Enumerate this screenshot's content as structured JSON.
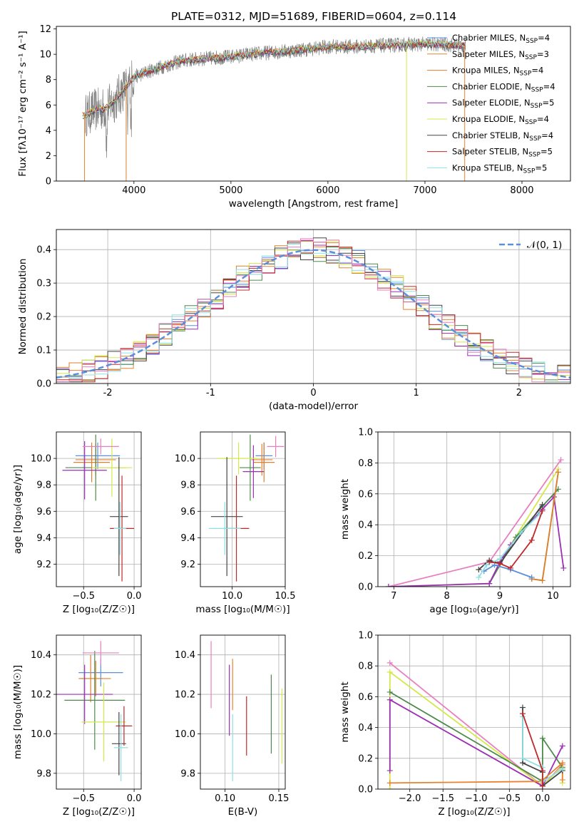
{
  "colors": {
    "chab_miles": "#5b8fd9",
    "salp_miles": "#e8822f",
    "krou_miles": "#d8812f",
    "chab_elodie": "#4c8a4c",
    "salp_elodie": "#9b2fb6",
    "krou_elodie": "#d4e84a",
    "chab_stelib": "#444444",
    "salp_stelib": "#c0282a",
    "krou_stelib": "#8fe0e2",
    "pink": "#e87fbf",
    "observed": "#808080",
    "grid": "#b0b0b0",
    "gauss": "#5b8fd9"
  },
  "chart_data": [
    {
      "type": "line",
      "title": "PLATE=0312, MJD=51689, FIBERID=0604, z=0.114",
      "xlabel": "wavelength [Angstrom, rest frame]",
      "ylabel": "Flux [fλ10⁻¹⁷ erg cm⁻² s⁻¹ A⁻¹]",
      "xlim": [
        3200,
        8500
      ],
      "ylim": [
        0,
        12.2
      ],
      "xticks": [
        4000,
        5000,
        6000,
        7000,
        8000
      ],
      "yticks": [
        0,
        2,
        4,
        6,
        8,
        10,
        12
      ],
      "grid": false,
      "legend_position": "right",
      "series": [
        {
          "name": "Chabrier MILES, N",
          "sub": "SSP",
          "suffix": "=4",
          "color_key": "chab_miles"
        },
        {
          "name": "Salpeter MILES, N",
          "sub": "SSP",
          "suffix": "=3",
          "color_key": "salp_miles"
        },
        {
          "name": "Kroupa MILES, N",
          "sub": "SSP",
          "suffix": "=4",
          "color_key": "krou_miles"
        },
        {
          "name": "Chabrier ELODIE, N",
          "sub": "SSP",
          "suffix": "=4",
          "color_key": "chab_elodie"
        },
        {
          "name": "Salpeter ELODIE, N",
          "sub": "SSP",
          "suffix": "=5",
          "color_key": "salp_elodie"
        },
        {
          "name": "Kroupa ELODIE, N",
          "sub": "SSP",
          "suffix": "=4",
          "color_key": "krou_elodie"
        },
        {
          "name": "Chabrier STELIB, N",
          "sub": "SSP",
          "suffix": "=4",
          "color_key": "chab_stelib"
        },
        {
          "name": "Salpeter STELIB, N",
          "sub": "SSP",
          "suffix": "=5",
          "color_key": "salp_stelib"
        },
        {
          "name": "Kroupa STELIB, N",
          "sub": "SSP",
          "suffix": "=5",
          "color_key": "krou_stelib"
        }
      ],
      "continuum": [
        [
          3500,
          5.2
        ],
        [
          3600,
          5.6
        ],
        [
          3700,
          5.7
        ],
        [
          3800,
          6.3
        ],
        [
          3900,
          7.3
        ],
        [
          4000,
          8.2
        ],
        [
          4200,
          8.8
        ],
        [
          4500,
          9.5
        ],
        [
          4800,
          9.7
        ],
        [
          5000,
          9.8
        ],
        [
          5200,
          10.0
        ],
        [
          5500,
          10.2
        ],
        [
          5800,
          10.4
        ],
        [
          6000,
          10.6
        ],
        [
          6300,
          10.6
        ],
        [
          6600,
          10.7
        ],
        [
          7000,
          10.8
        ],
        [
          7400,
          10.7
        ]
      ]
    },
    {
      "type": "area",
      "xlabel": "(data-model)/error",
      "ylabel": "Normed distribution",
      "xlim": [
        -2.5,
        2.5
      ],
      "ylim": [
        0,
        0.46
      ],
      "xticks": [
        -2,
        -1,
        0,
        1,
        2
      ],
      "yticks": [
        0.0,
        0.1,
        0.2,
        0.3,
        0.4
      ],
      "grid": true,
      "legend": "𝒩(0, 1)",
      "legend_position": "top-right"
    },
    {
      "type": "scatter",
      "xlabel": "Z [log₁₀(Z/Z☉)]",
      "ylabel": "age  [log₁₀(age/yr)]",
      "xlim": [
        -0.77,
        0.07
      ],
      "ylim": [
        9.03,
        10.2
      ],
      "xticks": [
        -0.5,
        0.0
      ],
      "yticks": [
        9.2,
        9.4,
        9.6,
        9.8,
        10.0
      ],
      "grid": true,
      "points": [
        {
          "x": -0.36,
          "y": 10.02,
          "xerr": 0.22,
          "yerr": 0.1,
          "color_key": "chab_miles"
        },
        {
          "x": -0.38,
          "y": 9.99,
          "xerr": 0.2,
          "yerr": 0.12,
          "color_key": "salp_miles"
        },
        {
          "x": -0.42,
          "y": 9.97,
          "xerr": 0.18,
          "yerr": 0.15,
          "color_key": "krou_miles"
        },
        {
          "x": -0.38,
          "y": 9.93,
          "xerr": 0.3,
          "yerr": 0.25,
          "color_key": "chab_elodie"
        },
        {
          "x": -0.49,
          "y": 9.91,
          "xerr": 0.22,
          "yerr": 0.22,
          "color_key": "salp_elodie"
        },
        {
          "x": -0.22,
          "y": 9.93,
          "xerr": 0.2,
          "yerr": 0.22,
          "color_key": "krou_elodie"
        },
        {
          "x": -0.15,
          "y": 9.56,
          "xerr": 0.09,
          "yerr": 0.45,
          "color_key": "chab_stelib"
        },
        {
          "x": -0.12,
          "y": 9.47,
          "xerr": 0.12,
          "yerr": 0.4,
          "color_key": "salp_stelib"
        },
        {
          "x": -0.14,
          "y": 9.47,
          "xerr": 0.06,
          "yerr": 0.2,
          "color_key": "krou_stelib"
        },
        {
          "x": -0.33,
          "y": 10.09,
          "xerr": 0.18,
          "yerr": 0.06,
          "color_key": "pink"
        }
      ]
    },
    {
      "type": "scatter",
      "xlabel": "mass [log₁₀(M/M☉)]",
      "ylabel": "",
      "xlim": [
        9.7,
        10.5
      ],
      "ylim": [
        9.03,
        10.2
      ],
      "xticks": [
        10.0,
        10.5
      ],
      "yticks": [
        9.2,
        9.4,
        9.6,
        9.8,
        10.0
      ],
      "grid": true,
      "points": [
        {
          "x": 10.3,
          "y": 10.02,
          "xerr": 0.08,
          "yerr": 0.1,
          "color_key": "chab_miles"
        },
        {
          "x": 10.28,
          "y": 9.99,
          "xerr": 0.1,
          "yerr": 0.12,
          "color_key": "salp_miles"
        },
        {
          "x": 10.3,
          "y": 9.97,
          "xerr": 0.1,
          "yerr": 0.15,
          "color_key": "krou_miles"
        },
        {
          "x": 10.17,
          "y": 9.93,
          "xerr": 0.1,
          "yerr": 0.25,
          "color_key": "chab_elodie"
        },
        {
          "x": 10.2,
          "y": 9.9,
          "xerr": 0.1,
          "yerr": 0.2,
          "color_key": "salp_elodie"
        },
        {
          "x": 10.06,
          "y": 10.0,
          "xerr": 0.2,
          "yerr": 0.12,
          "color_key": "krou_elodie"
        },
        {
          "x": 9.95,
          "y": 9.56,
          "xerr": 0.15,
          "yerr": 0.45,
          "color_key": "chab_stelib"
        },
        {
          "x": 10.04,
          "y": 9.47,
          "xerr": 0.12,
          "yerr": 0.4,
          "color_key": "salp_stelib"
        },
        {
          "x": 9.93,
          "y": 9.47,
          "xerr": 0.15,
          "yerr": 0.2,
          "color_key": "krou_stelib"
        },
        {
          "x": 10.41,
          "y": 10.09,
          "xerr": 0.08,
          "yerr": 0.08,
          "color_key": "pink"
        }
      ]
    },
    {
      "type": "line",
      "xlabel": "age  [log₁₀(age/yr)]",
      "ylabel": "mass weight",
      "xlim": [
        6.7,
        10.33
      ],
      "ylim": [
        0,
        1.0
      ],
      "xticks": [
        7,
        8,
        9,
        10
      ],
      "yticks": [
        0.0,
        0.2,
        0.4,
        0.6,
        0.8,
        1.0
      ],
      "grid": true,
      "series": [
        {
          "color_key": "pink",
          "x": [
            6.9,
            8.8,
            10.15
          ],
          "y": [
            0.0,
            0.16,
            0.82
          ]
        },
        {
          "color_key": "krou_elodie",
          "x": [
            6.9,
            8.8,
            9.0,
            10.1
          ],
          "y": [
            0.0,
            0.02,
            0.16,
            0.76
          ]
        },
        {
          "color_key": "chab_elodie",
          "x": [
            8.8,
            9.3,
            9.8,
            10.1
          ],
          "y": [
            0.02,
            0.32,
            0.52,
            0.63
          ]
        },
        {
          "color_key": "salp_elodie",
          "x": [
            6.9,
            8.8,
            9.0,
            9.2,
            9.8,
            10.02,
            10.2
          ],
          "y": [
            0.0,
            0.02,
            0.16,
            0.27,
            0.5,
            0.58,
            0.12
          ]
        },
        {
          "color_key": "salp_miles",
          "x": [
            9.6,
            9.8,
            10.1
          ],
          "y": [
            0.05,
            0.04,
            0.74
          ]
        },
        {
          "color_key": "krou_miles",
          "x": [
            9.6,
            9.8,
            10.1
          ],
          "y": [
            0.05,
            0.04,
            0.74
          ]
        },
        {
          "color_key": "chab_miles",
          "x": [
            8.7,
            8.9,
            9.2,
            9.6
          ],
          "y": [
            0.1,
            0.14,
            0.11,
            0.06
          ]
        },
        {
          "color_key": "chab_stelib",
          "x": [
            8.6,
            8.8,
            9.0,
            9.8
          ],
          "y": [
            0.11,
            0.17,
            0.15,
            0.53
          ]
        },
        {
          "color_key": "krou_stelib",
          "x": [
            8.6,
            8.75,
            9.0,
            9.4,
            9.75
          ],
          "y": [
            0.06,
            0.14,
            0.18,
            0.35,
            0.47
          ]
        },
        {
          "color_key": "salp_stelib",
          "x": [
            8.8,
            9.0,
            9.2,
            9.6,
            9.8
          ],
          "y": [
            0.16,
            0.15,
            0.12,
            0.3,
            0.49
          ]
        }
      ]
    },
    {
      "type": "scatter",
      "xlabel": "Z [log₁₀(Z/Z☉)]",
      "ylabel": "mass [log₁₀(M/M☉)]",
      "xlim": [
        -0.77,
        0.07
      ],
      "ylim": [
        9.72,
        10.5
      ],
      "xticks": [
        -0.5,
        0.0
      ],
      "yticks": [
        9.8,
        10.0,
        10.2,
        10.4
      ],
      "grid": true,
      "points": [
        {
          "x": -0.33,
          "y": 10.31,
          "xerr": 0.22,
          "yerr": 0.07,
          "color_key": "chab_miles"
        },
        {
          "x": -0.38,
          "y": 10.28,
          "xerr": 0.15,
          "yerr": 0.09,
          "color_key": "salp_miles"
        },
        {
          "x": -0.43,
          "y": 10.28,
          "xerr": 0.12,
          "yerr": 0.12,
          "color_key": "krou_miles"
        },
        {
          "x": -0.39,
          "y": 10.17,
          "xerr": 0.3,
          "yerr": 0.25,
          "color_key": "chab_elodie"
        },
        {
          "x": -0.49,
          "y": 10.2,
          "xerr": 0.28,
          "yerr": 0.15,
          "color_key": "salp_elodie"
        },
        {
          "x": -0.3,
          "y": 10.06,
          "xerr": 0.22,
          "yerr": 0.2,
          "color_key": "krou_elodie"
        },
        {
          "x": -0.15,
          "y": 9.95,
          "xerr": 0.07,
          "yerr": 0.16,
          "color_key": "chab_stelib"
        },
        {
          "x": -0.1,
          "y": 10.04,
          "xerr": 0.08,
          "yerr": 0.1,
          "color_key": "salp_stelib"
        },
        {
          "x": -0.13,
          "y": 9.93,
          "xerr": 0.07,
          "yerr": 0.17,
          "color_key": "krou_stelib"
        },
        {
          "x": -0.33,
          "y": 10.41,
          "xerr": 0.18,
          "yerr": 0.06,
          "color_key": "pink"
        }
      ]
    },
    {
      "type": "scatter",
      "xlabel": "E(B-V)",
      "ylabel": "",
      "xlim": [
        0.077,
        0.156
      ],
      "ylim": [
        9.72,
        10.5
      ],
      "xticks": [
        0.1,
        0.15
      ],
      "yticks": [
        9.8,
        10.0,
        10.2,
        10.4
      ],
      "grid": true,
      "points": [
        {
          "x": 0.087,
          "y": 10.3,
          "yerr": 0.17,
          "color_key": "pink"
        },
        {
          "x": 0.104,
          "y": 10.17,
          "yerr": 0.18,
          "color_key": "salp_elodie"
        },
        {
          "x": 0.107,
          "y": 10.25,
          "yerr": 0.13,
          "color_key": "salp_miles"
        },
        {
          "x": 0.107,
          "y": 9.93,
          "yerr": 0.17,
          "color_key": "krou_stelib"
        },
        {
          "x": 0.12,
          "y": 10.04,
          "yerr": 0.15,
          "color_key": "salp_stelib"
        },
        {
          "x": 0.143,
          "y": 10.1,
          "yerr": 0.2,
          "color_key": "chab_elodie"
        },
        {
          "x": 0.153,
          "y": 10.04,
          "yerr": 0.19,
          "color_key": "krou_elodie"
        }
      ]
    },
    {
      "type": "line",
      "xlabel": "Z [log₁₀(Z/Z☉)]",
      "ylabel": "mass weight",
      "xlim": [
        -2.48,
        0.42
      ],
      "ylim": [
        0,
        1.0
      ],
      "xticks": [
        -2.0,
        -1.5,
        -1.0,
        -0.5,
        0.0
      ],
      "yticks": [
        0.0,
        0.2,
        0.4,
        0.6,
        0.8,
        1.0
      ],
      "grid": true,
      "series": [
        {
          "color_key": "pink",
          "x": [
            -2.3,
            0.0,
            0.3
          ],
          "y": [
            0.82,
            0.02,
            0.16
          ]
        },
        {
          "color_key": "krou_elodie",
          "x": [
            -2.3,
            -2.3,
            0.0,
            0.3,
            0.3
          ],
          "y": [
            0.0,
            0.76,
            0.02,
            0.15,
            0.04
          ]
        },
        {
          "color_key": "chab_elodie",
          "x": [
            -2.3,
            0.0,
            0.0,
            0.3
          ],
          "y": [
            0.63,
            0.05,
            0.33,
            0.14
          ]
        },
        {
          "color_key": "salp_elodie",
          "x": [
            -2.3,
            -2.3,
            0.0,
            0.3
          ],
          "y": [
            0.12,
            0.58,
            0.02,
            0.28
          ]
        },
        {
          "color_key": "salp_miles",
          "x": [
            -2.3,
            -0.02,
            0.3,
            0.3
          ],
          "y": [
            0.04,
            0.05,
            0.17,
            0.06
          ]
        },
        {
          "color_key": "chab_stelib",
          "x": [
            -0.3,
            -0.3,
            0.0,
            0.0,
            0.3
          ],
          "y": [
            0.53,
            0.17,
            0.11,
            0.02,
            0.12
          ]
        },
        {
          "color_key": "krou_stelib",
          "x": [
            -0.3,
            -0.3,
            0.0,
            0.0,
            0.3
          ],
          "y": [
            0.47,
            0.2,
            0.14,
            0.05,
            0.13
          ]
        },
        {
          "color_key": "salp_stelib",
          "x": [
            -0.3,
            0.0,
            0.0
          ],
          "y": [
            0.49,
            0.12,
            0.02
          ]
        }
      ]
    }
  ]
}
